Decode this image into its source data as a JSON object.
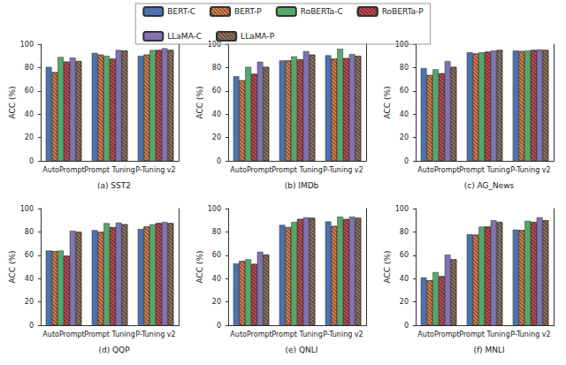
{
  "chart_data": [
    {
      "type": "bar",
      "title": "(a) SST2",
      "y_label": "ACC (%)",
      "legend": "top",
      "grid": false,
      "categories": [
        "AutoPrompt",
        "Prompt Tuning",
        "P-Tuning v2"
      ],
      "ylim": [
        0,
        100
      ],
      "yticks": [
        0,
        20,
        40,
        60,
        80,
        100
      ],
      "series": [
        {
          "name": "BERT-C",
          "color": "#4c72b0",
          "values": [
            80.5,
            92.5,
            90
          ]
        },
        {
          "name": "BERT-P",
          "color": "#dd8452",
          "marker": "hatch",
          "values": [
            76,
            91,
            91
          ]
        },
        {
          "name": "RoBERTa-C",
          "color": "#55a868",
          "values": [
            89,
            90,
            95
          ]
        },
        {
          "name": "RoBERTa-P",
          "color": "#c44e52",
          "marker": "hatch",
          "values": [
            85,
            87.5,
            95
          ]
        },
        {
          "name": "LLaMA-C",
          "color": "#8172b3",
          "values": [
            88.5,
            95,
            96.5
          ]
        },
        {
          "name": "LLaMA-P",
          "color": "#937860",
          "marker": "hatch",
          "values": [
            85.5,
            94.5,
            95
          ]
        }
      ]
    },
    {
      "type": "bar",
      "title": "(b) IMDb",
      "y_label": "ACC (%)",
      "legend": "top",
      "grid": false,
      "categories": [
        "AutoPrompt",
        "Prompt Tuning",
        "P-Tuning v2"
      ],
      "ylim": [
        0,
        100
      ],
      "yticks": [
        0,
        20,
        40,
        60,
        80,
        100
      ],
      "series": [
        {
          "name": "BERT-C",
          "color": "#4c72b0",
          "values": [
            72.5,
            86,
            90.5
          ]
        },
        {
          "name": "BERT-P",
          "color": "#dd8452",
          "marker": "hatch",
          "values": [
            69,
            86,
            87.5
          ]
        },
        {
          "name": "RoBERTa-C",
          "color": "#55a868",
          "values": [
            80.5,
            89.5,
            96
          ]
        },
        {
          "name": "RoBERTa-P",
          "color": "#c44e52",
          "marker": "hatch",
          "values": [
            74.5,
            87,
            88
          ]
        },
        {
          "name": "LLaMA-C",
          "color": "#8172b3",
          "values": [
            85,
            94,
            91.5
          ]
        },
        {
          "name": "LLaMA-P",
          "color": "#937860",
          "marker": "hatch",
          "values": [
            80.5,
            91,
            90
          ]
        }
      ]
    },
    {
      "type": "bar",
      "title": "(c) AG_News",
      "y_label": "ACC (%)",
      "legend": "top",
      "grid": false,
      "categories": [
        "AutoPrompt",
        "Prompt Tuning",
        "P-Tuning v2"
      ],
      "ylim": [
        0,
        100
      ],
      "yticks": [
        0,
        20,
        40,
        60,
        80,
        100
      ],
      "series": [
        {
          "name": "BERT-C",
          "color": "#4c72b0",
          "values": [
            79.5,
            93,
            94.5
          ]
        },
        {
          "name": "BERT-P",
          "color": "#dd8452",
          "marker": "hatch",
          "values": [
            73.5,
            92,
            94
          ]
        },
        {
          "name": "RoBERTa-C",
          "color": "#55a868",
          "values": [
            78.5,
            93,
            94.5
          ]
        },
        {
          "name": "RoBERTa-P",
          "color": "#c44e52",
          "marker": "hatch",
          "values": [
            75,
            93.5,
            95
          ]
        },
        {
          "name": "LLaMA-C",
          "color": "#8172b3",
          "values": [
            85.5,
            94.5,
            95.5
          ]
        },
        {
          "name": "LLaMA-P",
          "color": "#937860",
          "marker": "hatch",
          "values": [
            80.5,
            95,
            95
          ]
        }
      ]
    },
    {
      "type": "bar",
      "title": "(d) QQP",
      "y_label": "ACC (%)",
      "legend": "top",
      "grid": false,
      "categories": [
        "AutoPrompt",
        "Prompt Tuning",
        "P-Tuning v2"
      ],
      "ylim": [
        0,
        100
      ],
      "yticks": [
        0,
        20,
        40,
        60,
        80,
        100
      ],
      "series": [
        {
          "name": "BERT-C",
          "color": "#4c72b0",
          "values": [
            64,
            81.5,
            82.5
          ]
        },
        {
          "name": "BERT-P",
          "color": "#dd8452",
          "marker": "hatch",
          "values": [
            63.5,
            80,
            84.5
          ]
        },
        {
          "name": "RoBERTa-C",
          "color": "#55a868",
          "values": [
            64,
            87.5,
            86.5
          ]
        },
        {
          "name": "RoBERTa-P",
          "color": "#c44e52",
          "marker": "hatch",
          "values": [
            59.5,
            84,
            87.5
          ]
        },
        {
          "name": "LLaMA-C",
          "color": "#8172b3",
          "values": [
            81,
            88,
            88.5
          ]
        },
        {
          "name": "LLaMA-P",
          "color": "#937860",
          "marker": "hatch",
          "values": [
            80,
            86.5,
            87.5
          ]
        }
      ]
    },
    {
      "type": "bar",
      "title": "(e) QNLI",
      "y_label": "ACC (%)",
      "legend": "top",
      "grid": false,
      "categories": [
        "AutoPrompt",
        "Prompt Tuning",
        "P-Tuning v2"
      ],
      "ylim": [
        0,
        100
      ],
      "yticks": [
        0,
        20,
        40,
        60,
        80,
        100
      ],
      "series": [
        {
          "name": "BERT-C",
          "color": "#4c72b0",
          "values": [
            53,
            86,
            89
          ]
        },
        {
          "name": "BERT-P",
          "color": "#dd8452",
          "marker": "hatch",
          "values": [
            55,
            84,
            85
          ]
        },
        {
          "name": "RoBERTa-C",
          "color": "#55a868",
          "values": [
            56.5,
            88.5,
            93
          ]
        },
        {
          "name": "RoBERTa-P",
          "color": "#c44e52",
          "marker": "hatch",
          "values": [
            52.5,
            91,
            91
          ]
        },
        {
          "name": "LLaMA-C",
          "color": "#8172b3",
          "values": [
            63,
            92.5,
            93
          ]
        },
        {
          "name": "LLaMA-P",
          "color": "#937860",
          "marker": "hatch",
          "values": [
            60.5,
            92,
            92
          ]
        }
      ]
    },
    {
      "type": "bar",
      "title": "(f) MNLI",
      "y_label": "ACC (%)",
      "legend": "top",
      "grid": false,
      "categories": [
        "AutoPrompt",
        "Prompt Tuning",
        "P-Tuning v2"
      ],
      "ylim": [
        0,
        100
      ],
      "yticks": [
        0,
        20,
        40,
        60,
        80,
        100
      ],
      "series": [
        {
          "name": "BERT-C",
          "color": "#4c72b0",
          "values": [
            41,
            78,
            82
          ]
        },
        {
          "name": "BERT-P",
          "color": "#dd8452",
          "marker": "hatch",
          "values": [
            38.5,
            77.5,
            81.5
          ]
        },
        {
          "name": "RoBERTa-C",
          "color": "#55a868",
          "values": [
            45.5,
            84.5,
            89.5
          ]
        },
        {
          "name": "RoBERTa-P",
          "color": "#c44e52",
          "marker": "hatch",
          "values": [
            42,
            84.5,
            88.5
          ]
        },
        {
          "name": "LLaMA-C",
          "color": "#8172b3",
          "values": [
            60.5,
            90,
            92.5
          ]
        },
        {
          "name": "LLaMA-P",
          "color": "#937860",
          "marker": "hatch",
          "values": [
            56.5,
            88.5,
            90
          ]
        }
      ]
    }
  ]
}
